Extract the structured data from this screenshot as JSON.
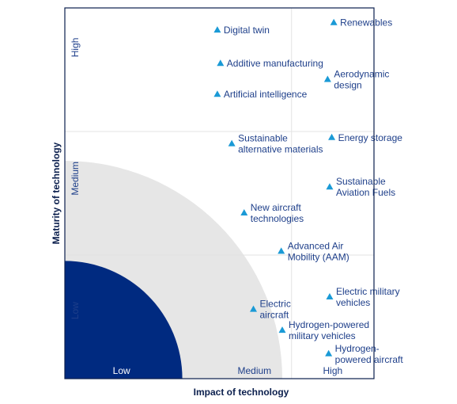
{
  "chart_data": {
    "type": "scatter",
    "xlabel": "Impact of technology",
    "ylabel": "Maturity of technology",
    "x_zones": [
      "Low",
      "Medium",
      "High"
    ],
    "y_zones": [
      "Low",
      "Medium",
      "High"
    ],
    "xlim": [
      0,
      3
    ],
    "ylim": [
      0,
      3
    ],
    "grid": true,
    "colors": {
      "marker": "#1a9ad6",
      "low_region": "#002a80",
      "medium_region": "#e6e6e6",
      "text": "#1e3f8a",
      "grid": "#e3e3e3",
      "frame": "#0b1f4d"
    },
    "points": [
      {
        "label": [
          "Digital twin"
        ],
        "x": 1.48,
        "y": 2.82
      },
      {
        "label": [
          "Additive manufacturing"
        ],
        "x": 1.51,
        "y": 2.55
      },
      {
        "label": [
          "Artificial intelligence"
        ],
        "x": 1.48,
        "y": 2.3
      },
      {
        "label": [
          "Renewables"
        ],
        "x": 2.61,
        "y": 2.88
      },
      {
        "label": [
          "Aerodynamic",
          "design"
        ],
        "x": 2.55,
        "y": 2.42
      },
      {
        "label": [
          "Sustainable",
          "alternative materials"
        ],
        "x": 1.62,
        "y": 1.9
      },
      {
        "label": [
          "Energy storage"
        ],
        "x": 2.59,
        "y": 1.95
      },
      {
        "label": [
          "Sustainable",
          "Aviation Fuels"
        ],
        "x": 2.57,
        "y": 1.55
      },
      {
        "label": [
          "New aircraft",
          "technologies"
        ],
        "x": 1.74,
        "y": 1.34
      },
      {
        "label": [
          "Advanced Air",
          "Mobility (AAM)"
        ],
        "x": 2.1,
        "y": 1.03
      },
      {
        "label": [
          "Electric military",
          "vehicles"
        ],
        "x": 2.57,
        "y": 0.66
      },
      {
        "label": [
          "Electric",
          "aircraft"
        ],
        "x": 1.83,
        "y": 0.56
      },
      {
        "label": [
          "Hydrogen-powered",
          "military vehicles"
        ],
        "x": 2.11,
        "y": 0.39
      },
      {
        "label": [
          "Hydrogen-",
          "powered aircraft"
        ],
        "x": 2.56,
        "y": 0.2
      }
    ]
  }
}
